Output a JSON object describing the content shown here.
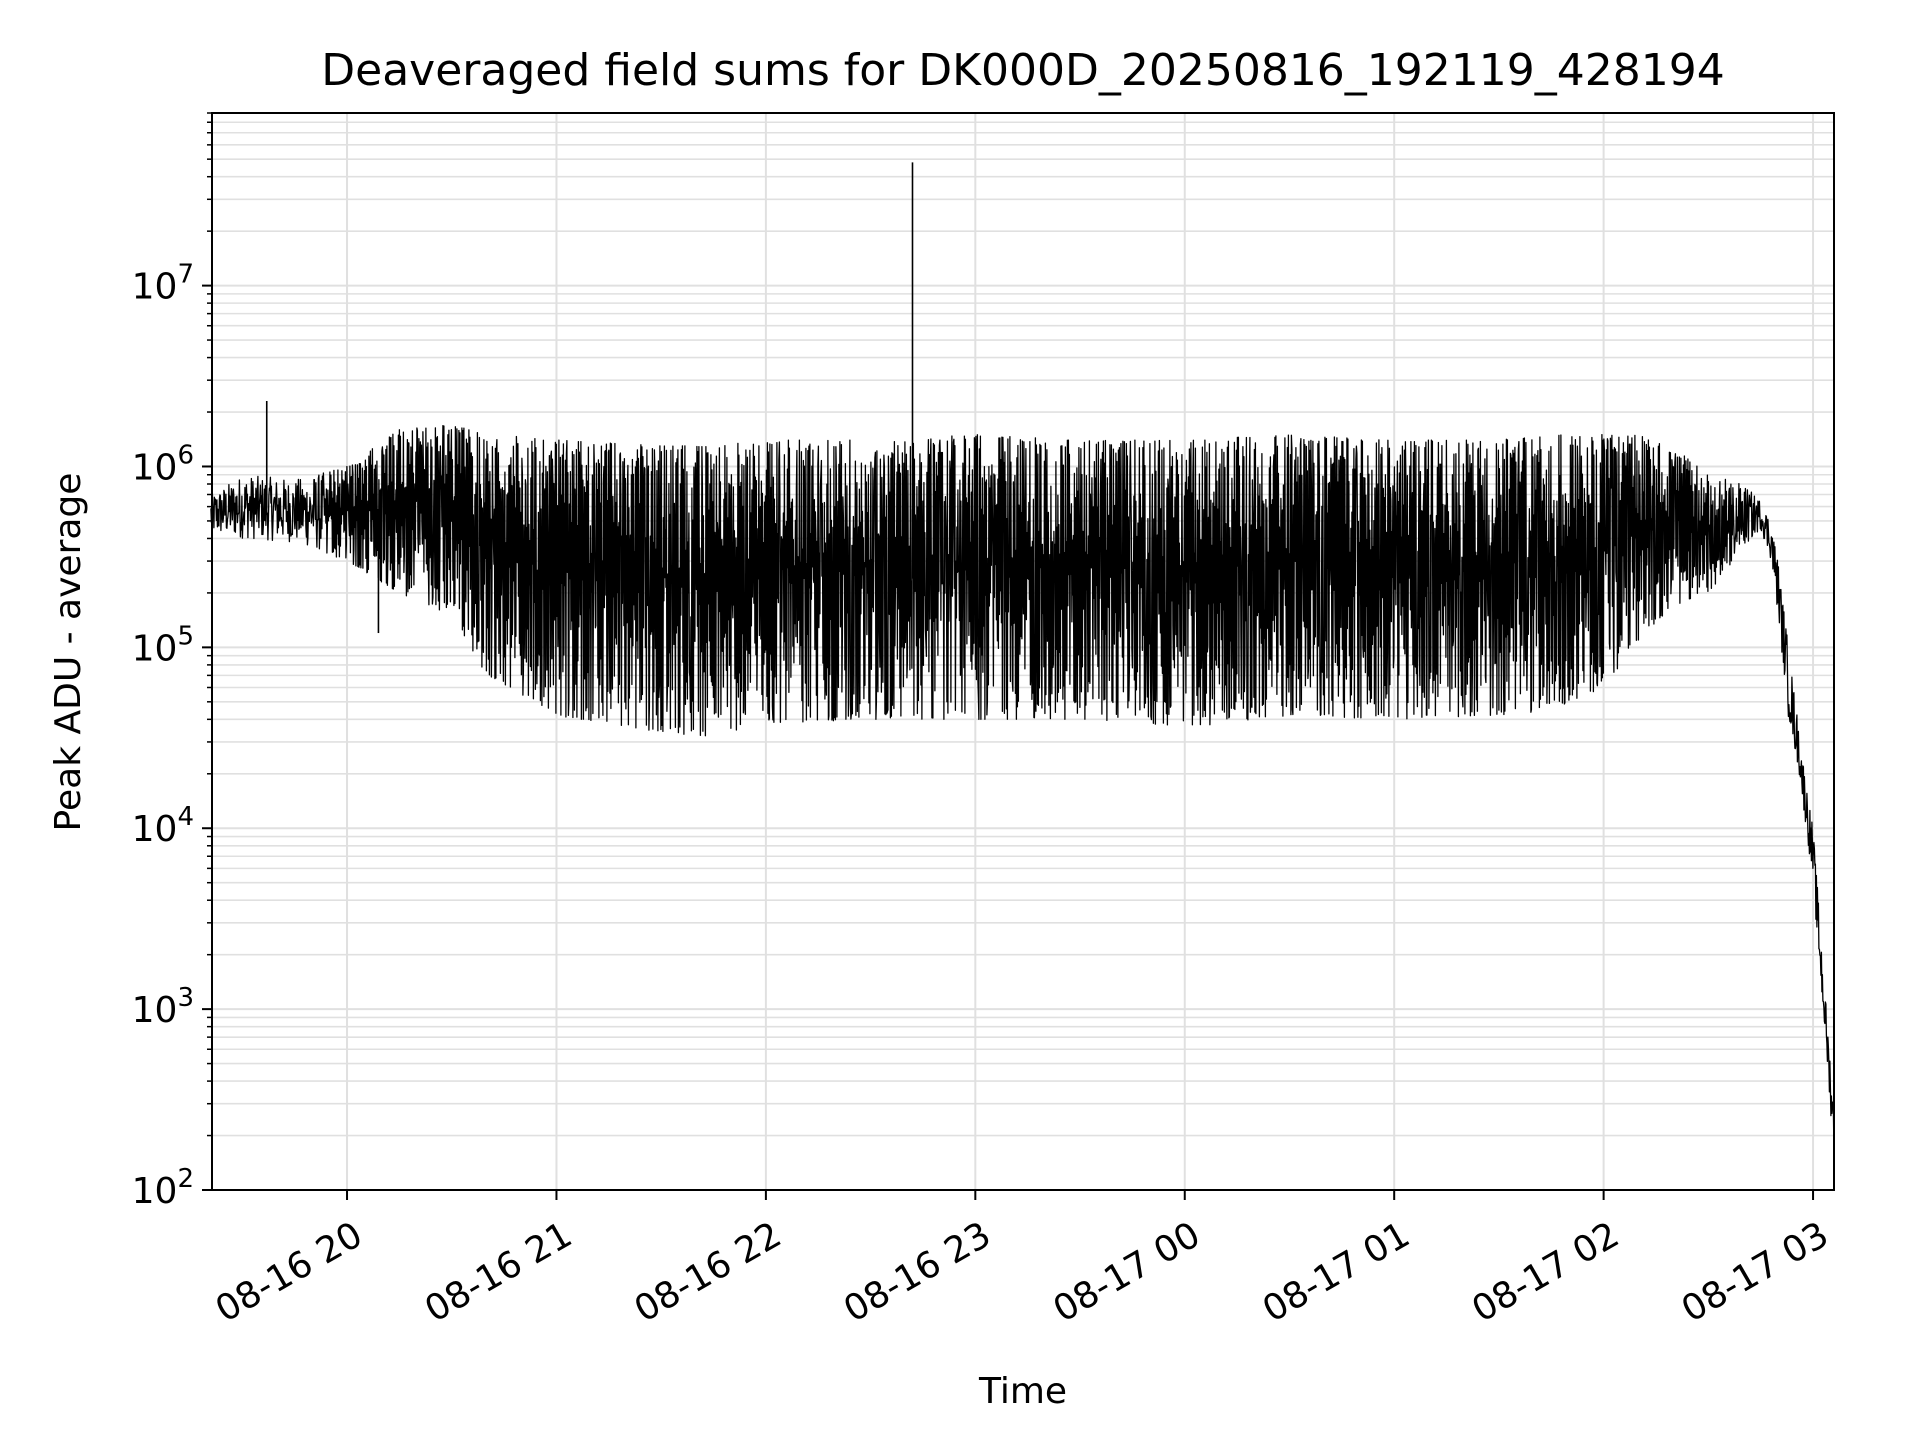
{
  "chart_data": {
    "type": "line",
    "title": "Deaveraged field sums for DK000D_20250816_192119_428194",
    "xlabel": "Time",
    "ylabel": "Peak ADU - average",
    "x_axis": {
      "kind": "datetime",
      "range": [
        "2025-08-16 19:21:19",
        "2025-08-17 03:06:00"
      ],
      "ticks": [
        "08-16 20",
        "08-16 21",
        "08-16 22",
        "08-16 23",
        "08-17 00",
        "08-17 01",
        "08-17 02",
        "08-17 03"
      ],
      "tick_times": [
        "2025-08-16 20:00",
        "2025-08-16 21:00",
        "2025-08-16 22:00",
        "2025-08-16 23:00",
        "2025-08-17 00:00",
        "2025-08-17 01:00",
        "2025-08-17 02:00",
        "2025-08-17 03:00"
      ],
      "tick_rotation_deg": 30
    },
    "y_axis": {
      "scale": "log",
      "range": [
        100,
        90000000
      ],
      "ticks": [
        {
          "base": "10",
          "exp": "2",
          "value": 100
        },
        {
          "base": "10",
          "exp": "3",
          "value": 1000
        },
        {
          "base": "10",
          "exp": "4",
          "value": 10000
        },
        {
          "base": "10",
          "exp": "5",
          "value": 100000
        },
        {
          "base": "10",
          "exp": "6",
          "value": 1000000
        },
        {
          "base": "10",
          "exp": "7",
          "value": 10000000
        }
      ]
    },
    "grid": true,
    "legend": "none",
    "colors": {
      "line": "#000000",
      "grid": "#e0e0e0",
      "axes": "#000000"
    },
    "series": [
      {
        "color": "#000000",
        "envelope": [
          {
            "t": "2025-08-16 19:21",
            "high": 700000,
            "low": 420000
          },
          {
            "t": "2025-08-16 19:30",
            "high": 900000,
            "low": 400000
          },
          {
            "t": "2025-08-16 19:45",
            "high": 850000,
            "low": 380000
          },
          {
            "t": "2025-08-16 20:00",
            "high": 1000000,
            "low": 300000
          },
          {
            "t": "2025-08-16 20:15",
            "high": 1600000,
            "low": 200000
          },
          {
            "t": "2025-08-16 20:30",
            "high": 1700000,
            "low": 150000
          },
          {
            "t": "2025-08-16 20:40",
            "high": 1500000,
            "low": 70000
          },
          {
            "t": "2025-08-16 20:50",
            "high": 1500000,
            "low": 55000
          },
          {
            "t": "2025-08-16 21:00",
            "high": 1400000,
            "low": 42000
          },
          {
            "t": "2025-08-16 21:30",
            "high": 1300000,
            "low": 34000
          },
          {
            "t": "2025-08-16 21:45",
            "high": 1300000,
            "low": 32000
          },
          {
            "t": "2025-08-16 22:00",
            "high": 1400000,
            "low": 38000
          },
          {
            "t": "2025-08-16 22:30",
            "high": 1400000,
            "low": 40000
          },
          {
            "t": "2025-08-16 23:00",
            "high": 1500000,
            "low": 40000
          },
          {
            "t": "2025-08-16 23:30",
            "high": 1400000,
            "low": 40000
          },
          {
            "t": "2025-08-17 00:00",
            "high": 1400000,
            "low": 36000
          },
          {
            "t": "2025-08-17 00:30",
            "high": 1500000,
            "low": 42000
          },
          {
            "t": "2025-08-17 01:00",
            "high": 1400000,
            "low": 40000
          },
          {
            "t": "2025-08-17 01:30",
            "high": 1400000,
            "low": 42000
          },
          {
            "t": "2025-08-17 01:45",
            "high": 1500000,
            "low": 45000
          },
          {
            "t": "2025-08-17 02:00",
            "high": 1500000,
            "low": 60000
          },
          {
            "t": "2025-08-17 02:10",
            "high": 1500000,
            "low": 110000
          },
          {
            "t": "2025-08-17 02:20",
            "high": 1300000,
            "low": 170000
          },
          {
            "t": "2025-08-17 02:30",
            "high": 900000,
            "low": 200000
          },
          {
            "t": "2025-08-17 02:40",
            "high": 800000,
            "low": 350000
          },
          {
            "t": "2025-08-17 02:45",
            "high": 650000,
            "low": 450000
          },
          {
            "t": "2025-08-17 02:48",
            "high": 500000,
            "low": 300000
          },
          {
            "t": "2025-08-17 02:50",
            "high": 300000,
            "low": 150000
          },
          {
            "t": "2025-08-17 02:53",
            "high": 100000,
            "low": 40000
          },
          {
            "t": "2025-08-17 02:56",
            "high": 35000,
            "low": 20000
          },
          {
            "t": "2025-08-17 02:58",
            "high": 18000,
            "low": 10000
          },
          {
            "t": "2025-08-17 03:00",
            "high": 10000,
            "low": 5000
          },
          {
            "t": "2025-08-17 03:02",
            "high": 3000,
            "low": 1500
          },
          {
            "t": "2025-08-17 03:04",
            "high": 900,
            "low": 500
          },
          {
            "t": "2025-08-17 03:06",
            "high": 300,
            "low": 150
          }
        ],
        "spikes": [
          {
            "t": "2025-08-16 19:37",
            "value": 2300000
          },
          {
            "t": "2025-08-16 20:09",
            "value": 120000
          },
          {
            "t": "2025-08-16 22:42",
            "value": 48000000
          }
        ]
      }
    ]
  }
}
